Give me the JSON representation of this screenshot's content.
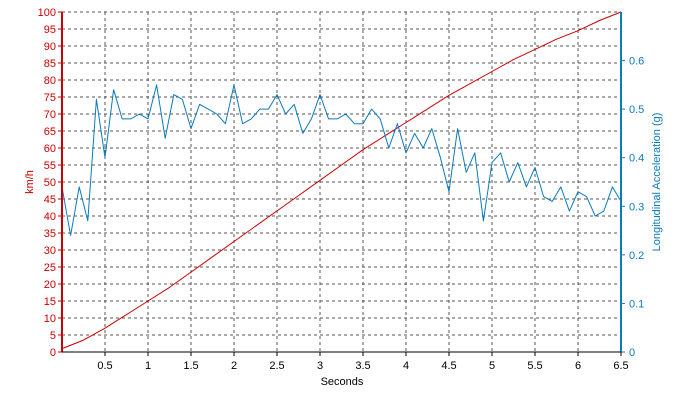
{
  "chart_data": {
    "type": "line",
    "xlabel": "Seconds",
    "x_ticks": [
      "0.5",
      "1",
      "1.5",
      "2",
      "2.5",
      "3",
      "3.5",
      "4",
      "4.5",
      "5",
      "5.5",
      "6",
      "6.5"
    ],
    "xlim": [
      0,
      6.5
    ],
    "y_left": {
      "label": "km/h",
      "range": [
        0,
        100
      ],
      "ticks": [
        "0",
        "5",
        "10",
        "15",
        "20",
        "25",
        "30",
        "35",
        "40",
        "45",
        "50",
        "55",
        "60",
        "65",
        "70",
        "75",
        "80",
        "85",
        "90",
        "95",
        "100"
      ],
      "color": "#cc0000"
    },
    "y_right": {
      "label": "Longitudinal Acceleration (g)",
      "range": [
        0,
        0.7
      ],
      "ticks": [
        "0",
        "0.1",
        "0.2",
        "0.3",
        "0.4",
        "0.5",
        "0.6"
      ],
      "color": "#0a7bbd"
    },
    "grid": true,
    "series": [
      {
        "axis": "left",
        "color": "#cc0000",
        "x": [
          0,
          0.25,
          0.5,
          0.75,
          1,
          1.25,
          1.5,
          1.75,
          2,
          2.25,
          2.5,
          2.75,
          3,
          3.25,
          3.5,
          3.75,
          4,
          4.25,
          4.5,
          4.75,
          5,
          5.25,
          5.5,
          5.75,
          6,
          6.25,
          6.5
        ],
        "values": [
          1,
          3.5,
          7,
          11,
          15,
          19,
          23.5,
          28,
          32.5,
          37,
          41.5,
          46,
          50.5,
          55,
          59.5,
          63.5,
          67.5,
          71.5,
          75.5,
          79,
          82.5,
          86,
          89,
          92,
          94.5,
          97.5,
          100
        ]
      },
      {
        "axis": "right",
        "color": "#0a7bbd",
        "x": [
          0,
          0.1,
          0.2,
          0.3,
          0.4,
          0.5,
          0.6,
          0.7,
          0.8,
          0.9,
          1.0,
          1.1,
          1.2,
          1.3,
          1.4,
          1.5,
          1.6,
          1.7,
          1.8,
          1.9,
          2.0,
          2.1,
          2.2,
          2.3,
          2.4,
          2.5,
          2.6,
          2.7,
          2.8,
          2.9,
          3.0,
          3.1,
          3.2,
          3.3,
          3.4,
          3.5,
          3.6,
          3.7,
          3.8,
          3.9,
          4.0,
          4.1,
          4.2,
          4.3,
          4.4,
          4.5,
          4.6,
          4.7,
          4.8,
          4.9,
          5.0,
          5.1,
          5.2,
          5.3,
          5.4,
          5.5,
          5.6,
          5.7,
          5.8,
          5.9,
          6.0,
          6.1,
          6.2,
          6.3,
          6.4,
          6.5
        ],
        "values": [
          0.34,
          0.24,
          0.34,
          0.27,
          0.52,
          0.4,
          0.54,
          0.48,
          0.48,
          0.49,
          0.48,
          0.55,
          0.44,
          0.53,
          0.52,
          0.46,
          0.51,
          0.5,
          0.49,
          0.47,
          0.55,
          0.47,
          0.48,
          0.5,
          0.5,
          0.53,
          0.49,
          0.51,
          0.45,
          0.48,
          0.53,
          0.48,
          0.48,
          0.49,
          0.47,
          0.47,
          0.5,
          0.48,
          0.42,
          0.47,
          0.41,
          0.45,
          0.42,
          0.46,
          0.4,
          0.33,
          0.46,
          0.37,
          0.41,
          0.27,
          0.39,
          0.41,
          0.35,
          0.39,
          0.34,
          0.38,
          0.32,
          0.31,
          0.34,
          0.29,
          0.33,
          0.32,
          0.28,
          0.29,
          0.34,
          0.31
        ]
      }
    ]
  }
}
